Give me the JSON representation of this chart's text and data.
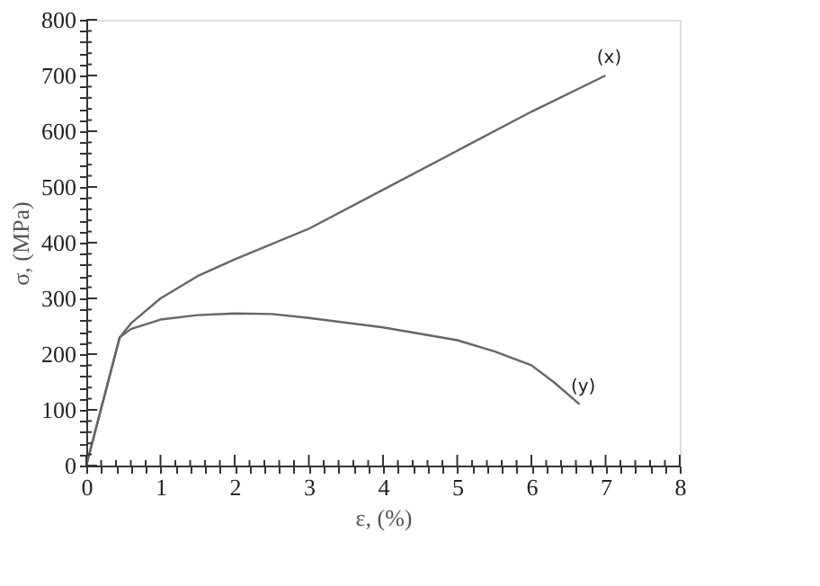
{
  "chart_data": {
    "type": "line",
    "xlabel": "ε, (%)",
    "ylabel": "σ, (MPa)",
    "xlim": [
      0,
      8
    ],
    "ylim": [
      0,
      800
    ],
    "xticks": [
      0,
      {
        "value": 0.2,
        "label": null
      },
      {
        "value": 0.4,
        "label": null
      },
      {
        "value": 0.6,
        "label": null
      },
      {
        "value": 0.8,
        "label": null
      },
      1,
      {
        "value": 1.2,
        "label": null
      },
      {
        "value": 1.4,
        "label": null
      },
      {
        "value": 1.6,
        "label": null
      },
      {
        "value": 1.8,
        "label": null
      },
      2,
      {
        "value": 2.2,
        "label": null
      },
      {
        "value": 2.4,
        "label": null
      },
      {
        "value": 2.6,
        "label": null
      },
      {
        "value": 2.8,
        "label": null
      },
      3,
      {
        "value": 3.2,
        "label": null
      },
      {
        "value": 3.4,
        "label": null
      },
      {
        "value": 3.6,
        "label": null
      },
      {
        "value": 3.8,
        "label": null
      },
      4,
      {
        "value": 4.2,
        "label": null
      },
      {
        "value": 4.4,
        "label": null
      },
      {
        "value": 4.6,
        "label": null
      },
      {
        "value": 4.8,
        "label": null
      },
      5,
      {
        "value": 5.2,
        "label": null
      },
      {
        "value": 5.4,
        "label": null
      },
      {
        "value": 5.6,
        "label": null
      },
      {
        "value": 5.8,
        "label": null
      },
      6,
      {
        "value": 6.2,
        "label": null
      },
      {
        "value": 6.4,
        "label": null
      },
      {
        "value": 6.6,
        "label": null
      },
      {
        "value": 6.8,
        "label": null
      },
      7,
      {
        "value": 7.2,
        "label": null
      },
      {
        "value": 7.4,
        "label": null
      },
      {
        "value": 7.6,
        "label": null
      },
      {
        "value": 7.8,
        "label": null
      },
      8
    ],
    "yticks": [
      0,
      {
        "value": 20,
        "label": null
      },
      {
        "value": 40,
        "label": null
      },
      {
        "value": 60,
        "label": null
      },
      {
        "value": 80,
        "label": null
      },
      100,
      {
        "value": 120,
        "label": null
      },
      {
        "value": 140,
        "label": null
      },
      {
        "value": 160,
        "label": null
      },
      {
        "value": 180,
        "label": null
      },
      200,
      {
        "value": 220,
        "label": null
      },
      {
        "value": 240,
        "label": null
      },
      {
        "value": 260,
        "label": null
      },
      {
        "value": 280,
        "label": null
      },
      300,
      {
        "value": 320,
        "label": null
      },
      {
        "value": 340,
        "label": null
      },
      {
        "value": 360,
        "label": null
      },
      {
        "value": 380,
        "label": null
      },
      400,
      {
        "value": 420,
        "label": null
      },
      {
        "value": 440,
        "label": null
      },
      {
        "value": 460,
        "label": null
      },
      {
        "value": 480,
        "label": null
      },
      500,
      {
        "value": 520,
        "label": null
      },
      {
        "value": 540,
        "label": null
      },
      {
        "value": 560,
        "label": null
      },
      {
        "value": 580,
        "label": null
      },
      600,
      {
        "value": 620,
        "label": null
      },
      {
        "value": 640,
        "label": null
      },
      {
        "value": 660,
        "label": null
      },
      {
        "value": 680,
        "label": null
      },
      700,
      {
        "value": 720,
        "label": null
      },
      {
        "value": 740,
        "label": null
      },
      {
        "value": 760,
        "label": null
      },
      {
        "value": 780,
        "label": null
      },
      800
    ],
    "grid": false,
    "legend": false,
    "marker": "none",
    "line_style": "solid",
    "series": [
      {
        "color": "#666666",
        "x": [
          0,
          0.45,
          0.6,
          1,
          1.5,
          2,
          3,
          4,
          5,
          6,
          7
        ],
        "values": [
          0,
          230,
          255,
          300,
          340,
          370,
          425,
          495,
          565,
          635,
          700
        ]
      },
      {
        "color": "#666666",
        "x": [
          0,
          0.45,
          0.6,
          1,
          1.5,
          2,
          2.5,
          3,
          4,
          5,
          5.5,
          6,
          6.3,
          6.65
        ],
        "values": [
          0,
          230,
          245,
          262,
          270,
          273,
          272,
          265,
          248,
          225,
          205,
          180,
          150,
          110
        ]
      }
    ],
    "annotations": [
      {
        "text": "(x)",
        "x": 7,
        "y": 700
      },
      {
        "text": "(y)",
        "x": 6.65,
        "y": 110
      }
    ]
  }
}
